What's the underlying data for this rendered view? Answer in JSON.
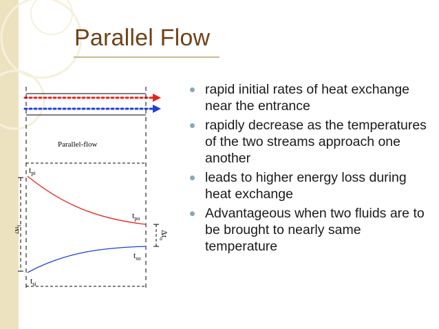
{
  "slide": {
    "title": "Parallel Flow"
  },
  "figure": {
    "caption": "Parallel-flow",
    "hot_inlet": "t",
    "hot_inlet_sub": "pi",
    "hot_outlet": "t",
    "hot_outlet_sub": "po",
    "cold_outlet": "t",
    "cold_outlet_sub": "so",
    "cold_inlet": "t",
    "cold_inlet_sub": "si",
    "delta_left": "Δt",
    "delta_left_sub": "i",
    "delta_right": "Δt",
    "delta_right_sub": "o",
    "colors": {
      "hot": "#e8231b",
      "cold": "#1f3ddb"
    }
  },
  "bullets": [
    {
      "text": "rapid initial rates of heat exchange near the entrance"
    },
    {
      "text": "rapidly decrease as the temperatures of the two streams approach one another"
    },
    {
      "text": "leads to higher energy loss during heat exchange"
    },
    {
      "text": "Advantageous when two fluids are to be brought  to nearly same temperature"
    }
  ]
}
